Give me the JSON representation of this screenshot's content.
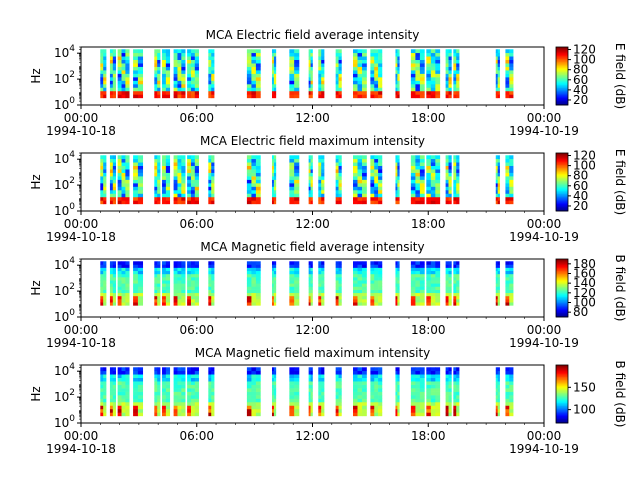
{
  "chart_data": [
    {
      "type": "heatmap",
      "title": "MCA  Electric field average intensity",
      "ylabel": "Hz",
      "y_scale": "log",
      "ylim": [
        1,
        30000
      ],
      "y_ticks": [
        "10^0",
        "10^2",
        "10^4"
      ],
      "x_range": [
        "1994-10-18 00:00",
        "1994-10-19 00:00"
      ],
      "x_ticks": [
        "00:00",
        "06:00",
        "12:00",
        "18:00",
        "00:00"
      ],
      "x_date_labels": [
        "1994-10-18",
        "",
        "",
        "",
        "1994-10-19"
      ],
      "colorbar": {
        "label": "E field (dB)",
        "ticks": [
          "20",
          "40",
          "60",
          "80",
          "100",
          "120"
        ],
        "range": [
          10,
          125
        ],
        "colormap": "jet"
      },
      "data_blocks_hours": [
        [
          1.0,
          1.3
        ],
        [
          1.5,
          1.8
        ],
        [
          1.9,
          2.5
        ],
        [
          2.7,
          3.2
        ],
        [
          3.8,
          4.1
        ],
        [
          4.2,
          4.6
        ],
        [
          4.8,
          5.4
        ],
        [
          5.5,
          6.1
        ],
        [
          6.6,
          6.9
        ],
        [
          8.6,
          9.3
        ],
        [
          9.9,
          10.1
        ],
        [
          10.8,
          11.3
        ],
        [
          11.8,
          12.0
        ],
        [
          12.3,
          12.6
        ],
        [
          13.2,
          13.5
        ],
        [
          14.1,
          14.8
        ],
        [
          15.0,
          15.6
        ],
        [
          16.3,
          16.5
        ],
        [
          17.1,
          17.8
        ],
        [
          17.9,
          18.6
        ],
        [
          18.9,
          19.2
        ],
        [
          19.3,
          19.6
        ],
        [
          21.5,
          21.7
        ],
        [
          22.0,
          22.4
        ]
      ]
    },
    {
      "type": "heatmap",
      "title": "MCA  Electric field maximum intensity",
      "ylabel": "Hz",
      "y_scale": "log",
      "ylim": [
        1,
        30000
      ],
      "y_ticks": [
        "10^0",
        "10^2",
        "10^4"
      ],
      "x_range": [
        "1994-10-18 00:00",
        "1994-10-19 00:00"
      ],
      "x_ticks": [
        "00:00",
        "06:00",
        "12:00",
        "18:00",
        "00:00"
      ],
      "x_date_labels": [
        "1994-10-18",
        "",
        "",
        "",
        "1994-10-19"
      ],
      "colorbar": {
        "label": "E field (dB)",
        "ticks": [
          "20",
          "40",
          "60",
          "80",
          "100",
          "120"
        ],
        "range": [
          10,
          125
        ],
        "colormap": "jet"
      },
      "data_blocks_hours": [
        [
          1.0,
          1.3
        ],
        [
          1.5,
          1.8
        ],
        [
          1.9,
          2.5
        ],
        [
          2.7,
          3.2
        ],
        [
          3.8,
          4.1
        ],
        [
          4.2,
          4.6
        ],
        [
          4.8,
          5.4
        ],
        [
          5.5,
          6.1
        ],
        [
          6.6,
          6.9
        ],
        [
          8.6,
          9.3
        ],
        [
          9.9,
          10.1
        ],
        [
          10.8,
          11.3
        ],
        [
          11.8,
          12.0
        ],
        [
          12.3,
          12.6
        ],
        [
          13.2,
          13.5
        ],
        [
          14.1,
          14.8
        ],
        [
          15.0,
          15.6
        ],
        [
          16.3,
          16.5
        ],
        [
          17.1,
          17.8
        ],
        [
          17.9,
          18.6
        ],
        [
          18.9,
          19.2
        ],
        [
          19.3,
          19.6
        ],
        [
          21.5,
          21.7
        ],
        [
          22.0,
          22.4
        ]
      ]
    },
    {
      "type": "heatmap",
      "title": "MCA  Magnetic field average intensity",
      "ylabel": "Hz",
      "y_scale": "log",
      "ylim": [
        1,
        30000
      ],
      "y_ticks": [
        "10^0",
        "10^2",
        "10^4"
      ],
      "x_range": [
        "1994-10-18 00:00",
        "1994-10-19 00:00"
      ],
      "x_ticks": [
        "00:00",
        "06:00",
        "12:00",
        "18:00",
        "00:00"
      ],
      "x_date_labels": [
        "1994-10-18",
        "",
        "",
        "",
        "1994-10-19"
      ],
      "colorbar": {
        "label": "B field (dB)",
        "ticks": [
          "80",
          "100",
          "120",
          "140",
          "160",
          "180"
        ],
        "range": [
          70,
          190
        ],
        "colormap": "jet"
      },
      "data_blocks_hours": [
        [
          1.0,
          1.3
        ],
        [
          1.5,
          1.8
        ],
        [
          1.9,
          2.5
        ],
        [
          2.7,
          3.2
        ],
        [
          3.8,
          4.1
        ],
        [
          4.2,
          4.6
        ],
        [
          4.8,
          5.4
        ],
        [
          5.5,
          6.1
        ],
        [
          6.6,
          6.9
        ],
        [
          8.6,
          9.3
        ],
        [
          9.9,
          10.1
        ],
        [
          10.8,
          11.3
        ],
        [
          11.8,
          12.0
        ],
        [
          12.3,
          12.6
        ],
        [
          13.2,
          13.5
        ],
        [
          14.1,
          14.8
        ],
        [
          15.0,
          15.6
        ],
        [
          16.3,
          16.5
        ],
        [
          17.1,
          17.8
        ],
        [
          17.9,
          18.6
        ],
        [
          18.9,
          19.2
        ],
        [
          19.3,
          19.6
        ],
        [
          21.5,
          21.7
        ],
        [
          22.0,
          22.4
        ]
      ]
    },
    {
      "type": "heatmap",
      "title": "MCA  Magnetic field maximum intensity",
      "ylabel": "Hz",
      "y_scale": "log",
      "ylim": [
        1,
        30000
      ],
      "y_ticks": [
        "10^0",
        "10^2",
        "10^4"
      ],
      "x_range": [
        "1994-10-18 00:00",
        "1994-10-19 00:00"
      ],
      "x_ticks": [
        "00:00",
        "06:00",
        "12:00",
        "18:00",
        "00:00"
      ],
      "x_date_labels": [
        "1994-10-18",
        "",
        "",
        "",
        "1994-10-19"
      ],
      "colorbar": {
        "label": "B field (dB)",
        "ticks": [
          "100",
          "150"
        ],
        "range": [
          70,
          200
        ],
        "colormap": "jet"
      },
      "data_blocks_hours": [
        [
          1.0,
          1.3
        ],
        [
          1.5,
          1.8
        ],
        [
          1.9,
          2.5
        ],
        [
          2.7,
          3.2
        ],
        [
          3.8,
          4.1
        ],
        [
          4.2,
          4.6
        ],
        [
          4.8,
          5.4
        ],
        [
          5.5,
          6.1
        ],
        [
          6.6,
          6.9
        ],
        [
          8.6,
          9.3
        ],
        [
          9.9,
          10.1
        ],
        [
          10.8,
          11.3
        ],
        [
          11.8,
          12.0
        ],
        [
          12.3,
          12.6
        ],
        [
          13.2,
          13.5
        ],
        [
          14.1,
          14.8
        ],
        [
          15.0,
          15.6
        ],
        [
          16.3,
          16.5
        ],
        [
          17.1,
          17.8
        ],
        [
          17.9,
          18.6
        ],
        [
          18.9,
          19.2
        ],
        [
          19.3,
          19.6
        ],
        [
          21.5,
          21.7
        ],
        [
          22.0,
          22.4
        ]
      ]
    }
  ]
}
